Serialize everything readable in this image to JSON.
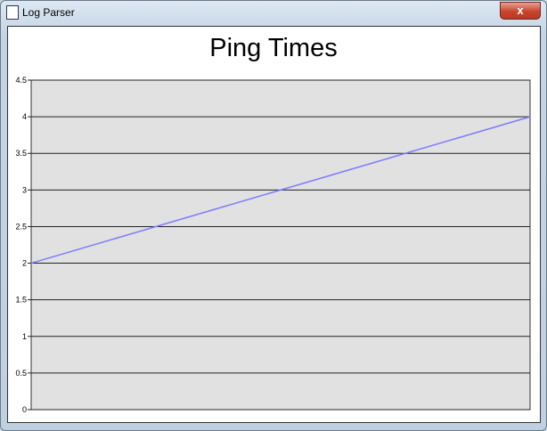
{
  "window": {
    "title": "Log Parser",
    "close_glyph": "x",
    "icon": "log-parser-app-icon"
  },
  "chart_data": {
    "type": "line",
    "title": "Ping Times",
    "xlabel": "",
    "ylabel": "",
    "x": [
      0,
      1
    ],
    "series": [
      {
        "values": [
          2,
          4
        ],
        "color": "#7b7bff"
      }
    ],
    "ylim": [
      0,
      4.5
    ],
    "yticks": [
      "0",
      "0.5",
      "1",
      "1.5",
      "2",
      "2.5",
      "3",
      "3.5",
      "4",
      "4.5"
    ],
    "grid": "horizontal",
    "plot_background": "#e1e1e1"
  }
}
